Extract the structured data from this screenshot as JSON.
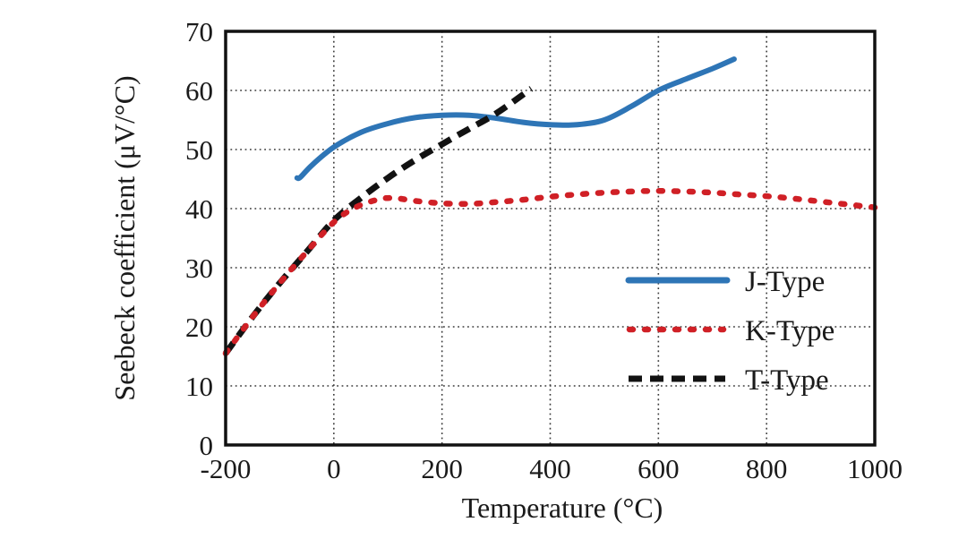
{
  "figure": {
    "background_color": "#ffffff",
    "text_color": "#1a1a1a"
  },
  "chart_data": {
    "type": "line",
    "title": "",
    "xlabel": "Temperature (°C)",
    "ylabel": "Seebeck coefficient (μV/°C)",
    "xlim": [
      -200,
      1000
    ],
    "ylim": [
      0,
      70
    ],
    "xticks": [
      -200,
      0,
      200,
      400,
      600,
      800,
      1000
    ],
    "yticks": [
      0,
      10,
      20,
      30,
      40,
      50,
      60,
      70
    ],
    "grid": "dotted",
    "legend_position": "inside-right-middle, no frame",
    "series": [
      {
        "name": "J-Type",
        "color": "#2e75b6",
        "line_style": "solid",
        "points": [
          [
            -68,
            45.2
          ],
          [
            -62,
            45.3
          ],
          [
            -40,
            47.4
          ],
          [
            0,
            50.4
          ],
          [
            50,
            52.9
          ],
          [
            100,
            54.4
          ],
          [
            150,
            55.4
          ],
          [
            200,
            55.8
          ],
          [
            250,
            55.8
          ],
          [
            300,
            55.3
          ],
          [
            350,
            54.6
          ],
          [
            400,
            54.2
          ],
          [
            450,
            54.2
          ],
          [
            500,
            55.0
          ],
          [
            550,
            57.3
          ],
          [
            600,
            60.0
          ],
          [
            650,
            61.9
          ],
          [
            700,
            63.7
          ],
          [
            740,
            65.3
          ]
        ]
      },
      {
        "name": "K-Type",
        "color": "#d02026",
        "line_style": "dotted",
        "points": [
          [
            -200,
            15.5
          ],
          [
            -150,
            21.7
          ],
          [
            -100,
            27.4
          ],
          [
            -50,
            32.7
          ],
          [
            0,
            37.7
          ],
          [
            40,
            40.2
          ],
          [
            80,
            41.5
          ],
          [
            110,
            41.8
          ],
          [
            150,
            41.3
          ],
          [
            200,
            40.9
          ],
          [
            250,
            40.8
          ],
          [
            300,
            41.1
          ],
          [
            350,
            41.5
          ],
          [
            400,
            42.0
          ],
          [
            450,
            42.4
          ],
          [
            500,
            42.7
          ],
          [
            550,
            42.9
          ],
          [
            600,
            43.0
          ],
          [
            650,
            42.9
          ],
          [
            700,
            42.7
          ],
          [
            750,
            42.4
          ],
          [
            800,
            42.1
          ],
          [
            850,
            41.7
          ],
          [
            900,
            41.2
          ],
          [
            950,
            40.7
          ],
          [
            1000,
            40.2
          ]
        ]
      },
      {
        "name": "T-Type",
        "color": "#121212",
        "line_style": "dashed",
        "points": [
          [
            -200,
            15.5
          ],
          [
            -150,
            21.7
          ],
          [
            -100,
            27.4
          ],
          [
            -50,
            32.7
          ],
          [
            0,
            38.0
          ],
          [
            50,
            41.8
          ],
          [
            100,
            45.2
          ],
          [
            150,
            48.2
          ],
          [
            200,
            50.9
          ],
          [
            250,
            53.5
          ],
          [
            300,
            56.1
          ],
          [
            365,
            60.3
          ]
        ]
      }
    ]
  }
}
